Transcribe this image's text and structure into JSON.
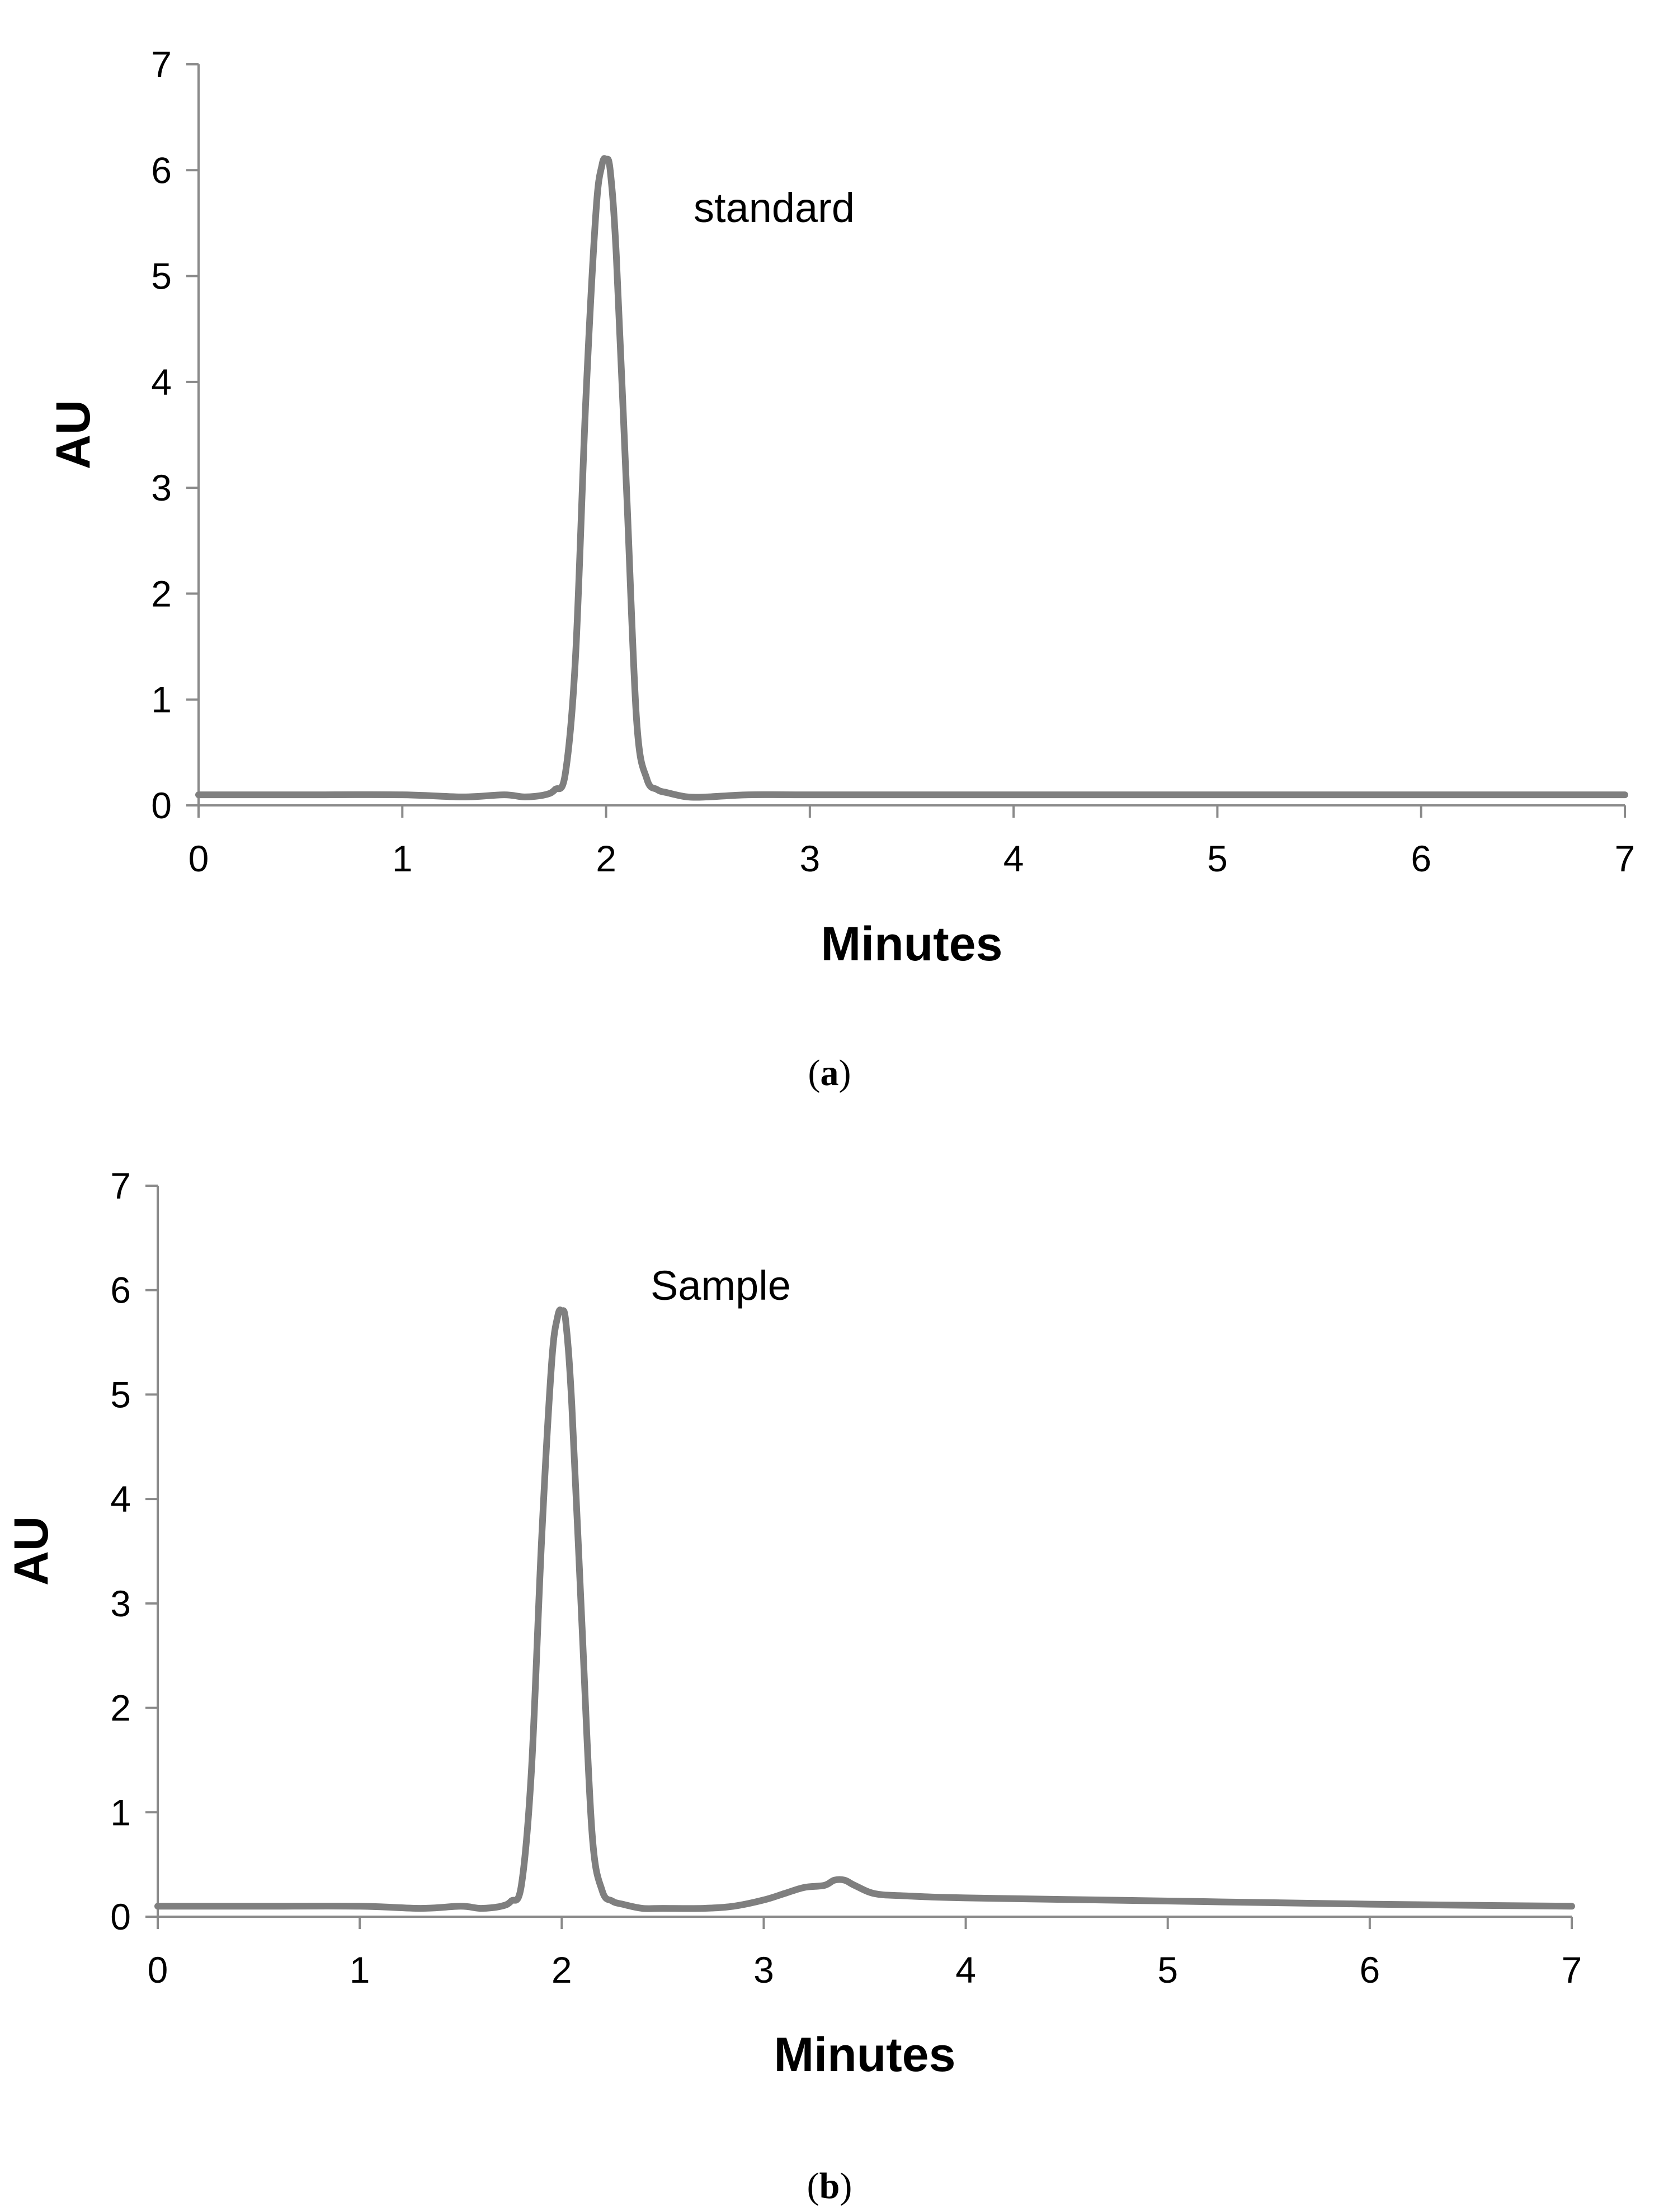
{
  "chart_data": [
    {
      "type": "line",
      "panel_label": "a",
      "annotation": "standard",
      "xlabel": "Minutes",
      "ylabel": "AU",
      "xlim": [
        0,
        7
      ],
      "ylim": [
        0,
        7
      ],
      "x_ticks": [
        "0",
        "1",
        "2",
        "3",
        "4",
        "5",
        "6",
        "7"
      ],
      "y_ticks": [
        "0",
        "1",
        "2",
        "3",
        "4",
        "5",
        "6",
        "7"
      ],
      "grid": false,
      "series": [
        {
          "name": "standard",
          "color": "#7f7f7f",
          "x": [
            0,
            0.5,
            1.0,
            1.3,
            1.5,
            1.6,
            1.7,
            1.75,
            1.8,
            1.85,
            1.9,
            1.95,
            1.98,
            2.0,
            2.02,
            2.05,
            2.1,
            2.15,
            2.2,
            2.25,
            2.3,
            2.4,
            2.5,
            2.7,
            3.0,
            4.0,
            5.0,
            6.0,
            7.0
          ],
          "values": [
            0.1,
            0.1,
            0.1,
            0.08,
            0.1,
            0.08,
            0.1,
            0.15,
            0.3,
            1.4,
            3.8,
            5.6,
            6.05,
            6.1,
            6.0,
            5.2,
            3.0,
            0.8,
            0.25,
            0.15,
            0.12,
            0.08,
            0.08,
            0.1,
            0.1,
            0.1,
            0.1,
            0.1,
            0.1
          ]
        }
      ]
    },
    {
      "type": "line",
      "panel_label": "b",
      "annotation": "Sample",
      "xlabel": "Minutes",
      "ylabel": "AU",
      "xlim": [
        0,
        7
      ],
      "ylim": [
        0,
        7
      ],
      "x_ticks": [
        "0",
        "1",
        "2",
        "3",
        "4",
        "5",
        "6",
        "7"
      ],
      "y_ticks": [
        "0",
        "1",
        "2",
        "3",
        "4",
        "5",
        "6",
        "7"
      ],
      "grid": false,
      "series": [
        {
          "name": "Sample",
          "color": "#7f7f7f",
          "x": [
            0,
            0.5,
            1.0,
            1.3,
            1.5,
            1.6,
            1.7,
            1.75,
            1.8,
            1.85,
            1.9,
            1.95,
            1.98,
            2.0,
            2.02,
            2.05,
            2.1,
            2.15,
            2.2,
            2.25,
            2.3,
            2.4,
            2.5,
            2.7,
            2.85,
            3.0,
            3.1,
            3.2,
            3.3,
            3.35,
            3.4,
            3.45,
            3.55,
            3.7,
            4.0,
            5.0,
            6.0,
            7.0
          ],
          "values": [
            0.1,
            0.1,
            0.1,
            0.08,
            0.1,
            0.08,
            0.1,
            0.15,
            0.3,
            1.4,
            3.6,
            5.3,
            5.75,
            5.8,
            5.7,
            4.9,
            2.8,
            0.8,
            0.25,
            0.15,
            0.12,
            0.08,
            0.08,
            0.08,
            0.1,
            0.16,
            0.22,
            0.28,
            0.3,
            0.35,
            0.35,
            0.3,
            0.22,
            0.2,
            0.18,
            0.15,
            0.12,
            0.1
          ]
        }
      ]
    }
  ]
}
